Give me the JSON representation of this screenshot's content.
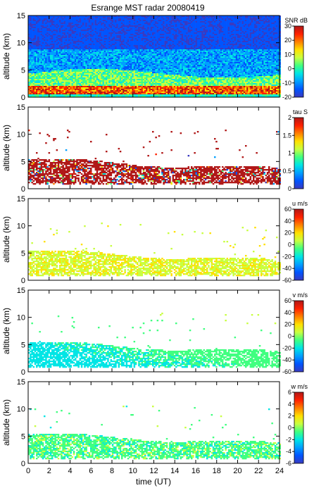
{
  "figure": {
    "title": "Esrange MST radar 20080419",
    "xlabel": "time (UT)"
  },
  "chart_data": [
    {
      "type": "heatmap",
      "id": "snr",
      "title": "Esrange MST radar 20080419",
      "ylabel": "altitude (km)",
      "xlabel": "",
      "xlim": [
        0,
        24
      ],
      "ylim": [
        0,
        15
      ],
      "yticks": [
        0,
        5,
        10,
        15
      ],
      "colorbar": {
        "label": "SNR dB",
        "range": [
          -20,
          30
        ],
        "ticks": [
          30,
          20,
          10,
          0,
          -10,
          -20
        ]
      }
    },
    {
      "type": "heatmap",
      "id": "tau",
      "ylabel": "altitude (km)",
      "xlabel": "",
      "xlim": [
        0,
        24
      ],
      "ylim": [
        0,
        15
      ],
      "yticks": [
        0,
        5,
        10,
        15
      ],
      "colorbar": {
        "label": "tau S",
        "range": [
          0,
          2
        ],
        "ticks": [
          2,
          1.5,
          1,
          0.5,
          0
        ]
      }
    },
    {
      "type": "heatmap",
      "id": "u",
      "ylabel": "altitude (km)",
      "xlabel": "",
      "xlim": [
        0,
        24
      ],
      "ylim": [
        0,
        15
      ],
      "yticks": [
        0,
        5,
        10,
        15
      ],
      "colorbar": {
        "label": "u m/s",
        "range": [
          -60,
          60
        ],
        "ticks": [
          60,
          40,
          20,
          0,
          -20,
          -40,
          -60
        ]
      }
    },
    {
      "type": "heatmap",
      "id": "v",
      "ylabel": "altitude (km)",
      "xlabel": "",
      "xlim": [
        0,
        24
      ],
      "ylim": [
        0,
        15
      ],
      "yticks": [
        0,
        5,
        10,
        15
      ],
      "colorbar": {
        "label": "v m/s",
        "range": [
          -60,
          60
        ],
        "ticks": [
          60,
          40,
          20,
          0,
          -20,
          -40,
          -60
        ]
      }
    },
    {
      "type": "heatmap",
      "id": "w",
      "ylabel": "altitude (km)",
      "xlabel": "time (UT)",
      "xlim": [
        0,
        24
      ],
      "ylim": [
        0,
        15
      ],
      "yticks": [
        0,
        5,
        10,
        15
      ],
      "xticks": [
        0,
        2,
        4,
        6,
        8,
        10,
        12,
        14,
        16,
        18,
        20,
        22,
        24
      ],
      "colorbar": {
        "label": "w m/s",
        "range": [
          -6,
          6
        ],
        "ticks": [
          6,
          4,
          2,
          0,
          -2,
          -4,
          -6
        ]
      }
    }
  ],
  "colormap": [
    "#3a3ac0",
    "#0055ff",
    "#00a0ff",
    "#00e5e5",
    "#40ff80",
    "#c8ff40",
    "#ffe000",
    "#ff8000",
    "#ff2000",
    "#b01818"
  ]
}
